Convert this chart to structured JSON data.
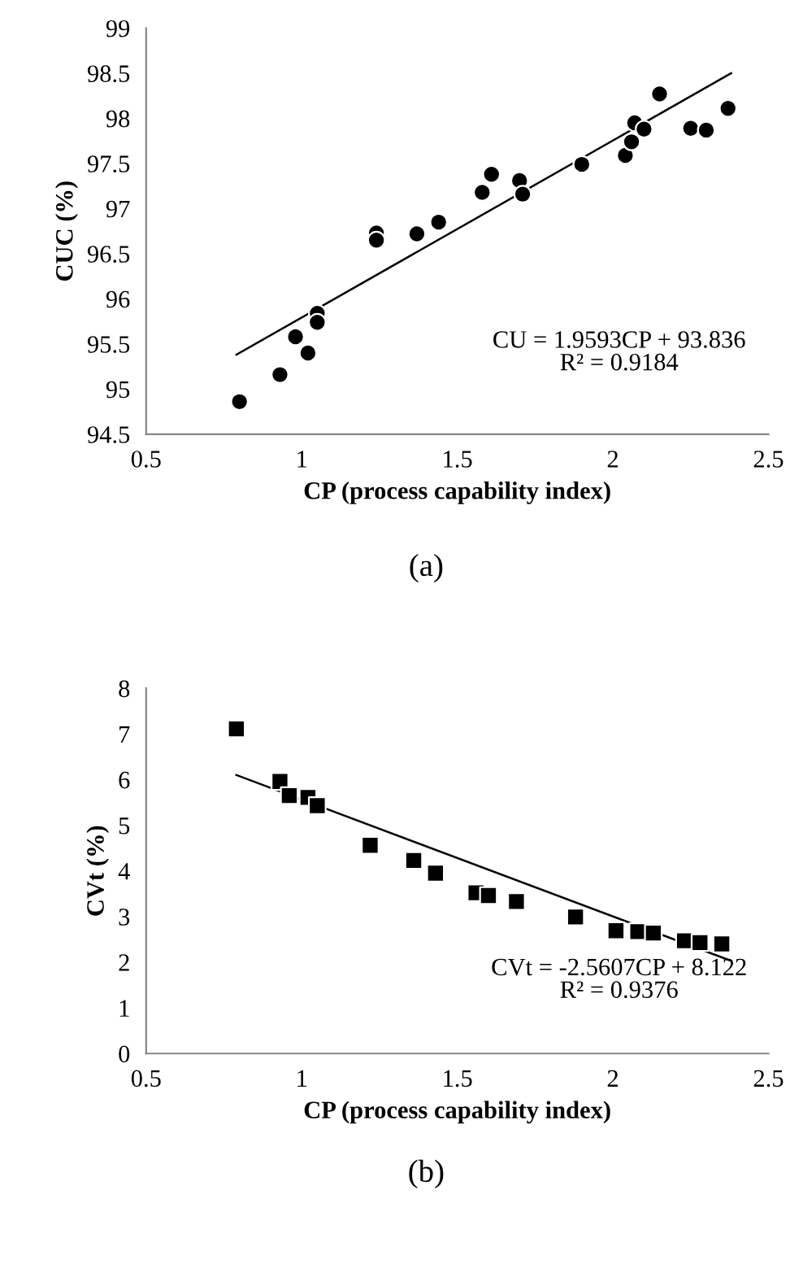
{
  "chart_data": [
    {
      "type": "scatter",
      "xlabel": "CP (process capability index)",
      "ylabel": "CUC (%)",
      "grid": false,
      "legend": false,
      "xlim": [
        0.5,
        2.5
      ],
      "xticks": [
        0.5,
        1,
        1.5,
        2,
        2.5
      ],
      "ylim": [
        94.5,
        99
      ],
      "yticks": [
        94.5,
        95,
        95.5,
        96,
        96.5,
        97,
        97.5,
        98,
        98.5,
        99
      ],
      "series": [
        {
          "marker": "circle",
          "color": "#000000",
          "x": [
            0.8,
            0.93,
            0.98,
            1.02,
            1.05,
            1.05,
            1.24,
            1.24,
            1.37,
            1.44,
            1.58,
            1.61,
            1.7,
            1.71,
            1.9,
            2.04,
            2.06,
            2.07,
            2.1,
            2.15,
            2.25,
            2.3,
            2.37
          ],
          "values": [
            94.86,
            95.16,
            95.58,
            95.4,
            95.84,
            95.74,
            96.73,
            96.65,
            96.72,
            96.85,
            97.18,
            97.38,
            97.31,
            97.16,
            97.49,
            97.59,
            97.74,
            97.95,
            97.88,
            98.27,
            97.89,
            97.87,
            98.11
          ]
        },
        {
          "type": "line",
          "marker": "none",
          "color": "#000000",
          "x": [
            0.79,
            2.38
          ],
          "values": [
            95.38,
            98.5
          ]
        }
      ],
      "annotations": [
        "CU = 1.9593CP + 93.836\nR² = 0.9184",
        "(a)"
      ]
    },
    {
      "type": "scatter",
      "xlabel": "CP (process capability index)",
      "ylabel": "CVt (%)",
      "grid": false,
      "legend": false,
      "xlim": [
        0.5,
        2.5
      ],
      "xticks": [
        0.5,
        1,
        1.5,
        2,
        2.5
      ],
      "ylim": [
        0,
        8
      ],
      "yticks": [
        0,
        1,
        2,
        3,
        4,
        5,
        6,
        7,
        8
      ],
      "series": [
        {
          "marker": "square",
          "color": "#000000",
          "x": [
            0.79,
            0.93,
            0.96,
            1.02,
            1.05,
            1.22,
            1.36,
            1.43,
            1.56,
            1.6,
            1.69,
            1.88,
            2.01,
            2.08,
            2.13,
            2.23,
            2.28,
            2.35
          ],
          "values": [
            7.11,
            5.96,
            5.65,
            5.61,
            5.43,
            4.56,
            4.23,
            3.95,
            3.52,
            3.46,
            3.33,
            2.99,
            2.69,
            2.67,
            2.64,
            2.47,
            2.43,
            2.4
          ]
        },
        {
          "type": "line",
          "marker": "none",
          "color": "#000000",
          "x": [
            0.79,
            2.38
          ],
          "values": [
            6.1,
            2.03
          ]
        }
      ],
      "annotations": [
        "CVt = -2.5607CP + 8.122\nR² = 0.9376",
        "(b)"
      ]
    }
  ]
}
